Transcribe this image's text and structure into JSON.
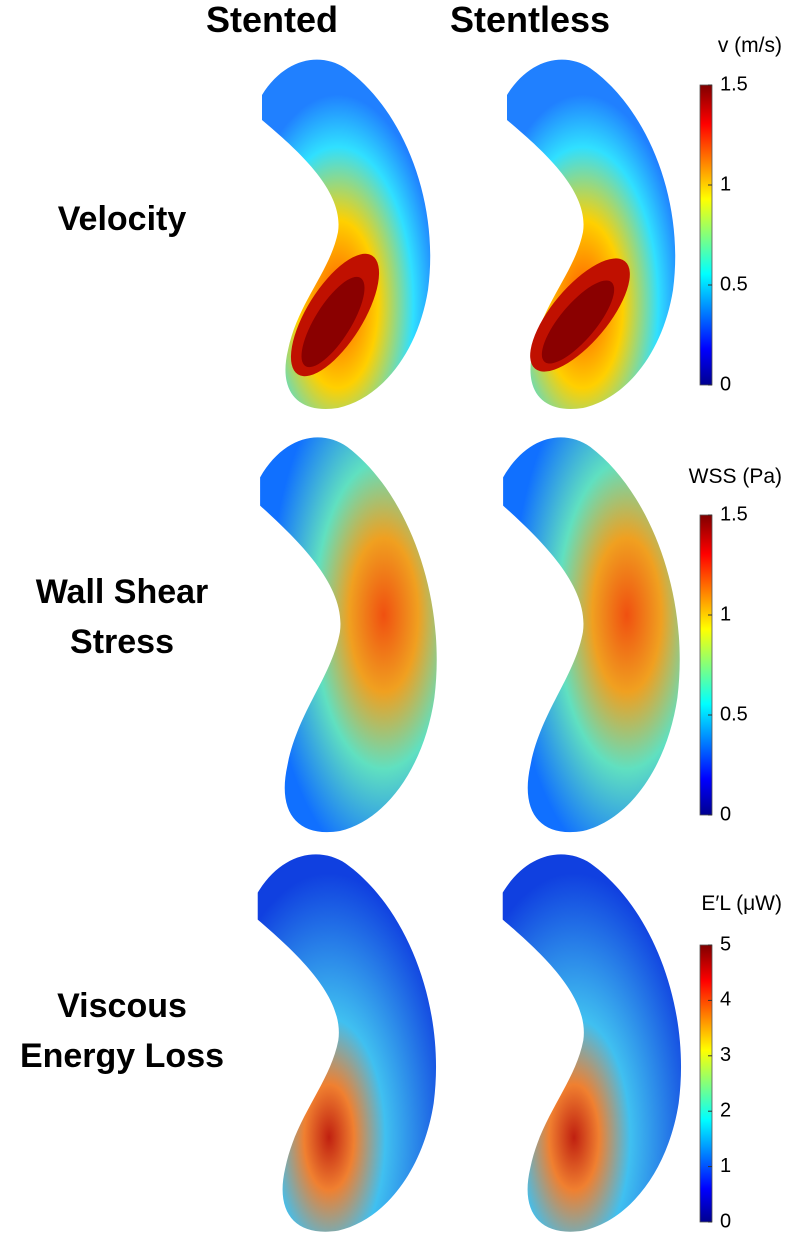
{
  "columns": [
    "Stented",
    "Stentless"
  ],
  "rows": [
    {
      "label": [
        "Velocity"
      ],
      "colorbar": {
        "title": "v (m/s)",
        "lim": [
          0,
          1.5
        ],
        "ticks": [
          0,
          0.5,
          1,
          1.5
        ]
      }
    },
    {
      "label": [
        "Wall Shear",
        "Stress"
      ],
      "colorbar": {
        "title": "WSS (Pa)",
        "lim": [
          0,
          1.5
        ],
        "ticks": [
          0,
          0.5,
          1,
          1.5
        ]
      }
    },
    {
      "label": [
        "Viscous",
        "Energy Loss"
      ],
      "colorbar": {
        "title": "E′L (μW)",
        "lim": [
          0,
          5
        ],
        "ticks": [
          0,
          1,
          2,
          3,
          4,
          5
        ]
      }
    }
  ]
}
